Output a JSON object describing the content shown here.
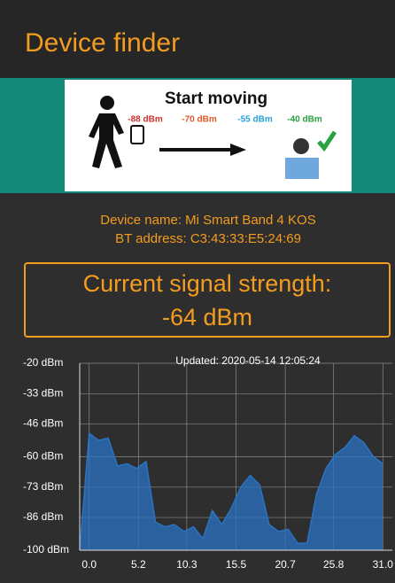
{
  "header": {
    "title": "Device finder"
  },
  "banner": {
    "title": "Start moving",
    "levels": [
      "-88 dBm",
      "-70 dBm",
      "-55 dBm",
      "-40 dBm"
    ]
  },
  "device": {
    "name": "Device name: Mi Smart Band 4 KOS",
    "address": "BT address: C3:43:33:E5:24:69"
  },
  "signal": {
    "label": "Current signal strength:",
    "value": "-64 dBm"
  },
  "chart_data": {
    "type": "area",
    "title": "Updated: 2020-05-14 12:05:24",
    "x": [
      -1,
      0,
      1,
      2,
      3,
      4,
      5,
      6,
      7,
      8,
      9,
      10,
      11,
      12,
      13,
      14,
      15,
      16,
      17,
      18,
      19,
      20,
      21,
      22,
      23,
      24,
      25,
      26,
      27,
      28,
      29,
      30,
      31
    ],
    "y": [
      -100,
      -50,
      -53,
      -52,
      -64,
      -63,
      -65,
      -62,
      -88,
      -90,
      -89,
      -92,
      -90,
      -95,
      -83,
      -89,
      -82,
      -73,
      -68,
      -72,
      -89,
      -92,
      -91,
      -97,
      -97,
      -76,
      -65,
      -59,
      -56,
      -51,
      -54,
      -60,
      -63
    ],
    "color": "#2a73c4",
    "xlim": [
      -1,
      32
    ],
    "ylim": [
      -100,
      -20
    ],
    "xticks": [
      {
        "value": 0,
        "label": "0.0"
      },
      5.2,
      10.3,
      15.5,
      20.7,
      25.8,
      {
        "value": 31,
        "label": "31.0"
      }
    ],
    "yticks": [
      {
        "value": -20,
        "label": "-20 dBm"
      },
      {
        "value": -33,
        "label": "-33 dBm"
      },
      {
        "value": -46,
        "label": "-46 dBm"
      },
      {
        "value": -60,
        "label": "-60 dBm"
      },
      {
        "value": -73,
        "label": "-73 dBm"
      },
      {
        "value": -86,
        "label": "-86 dBm"
      },
      {
        "value": -100,
        "label": "-100 dBm"
      }
    ],
    "grid": true
  }
}
